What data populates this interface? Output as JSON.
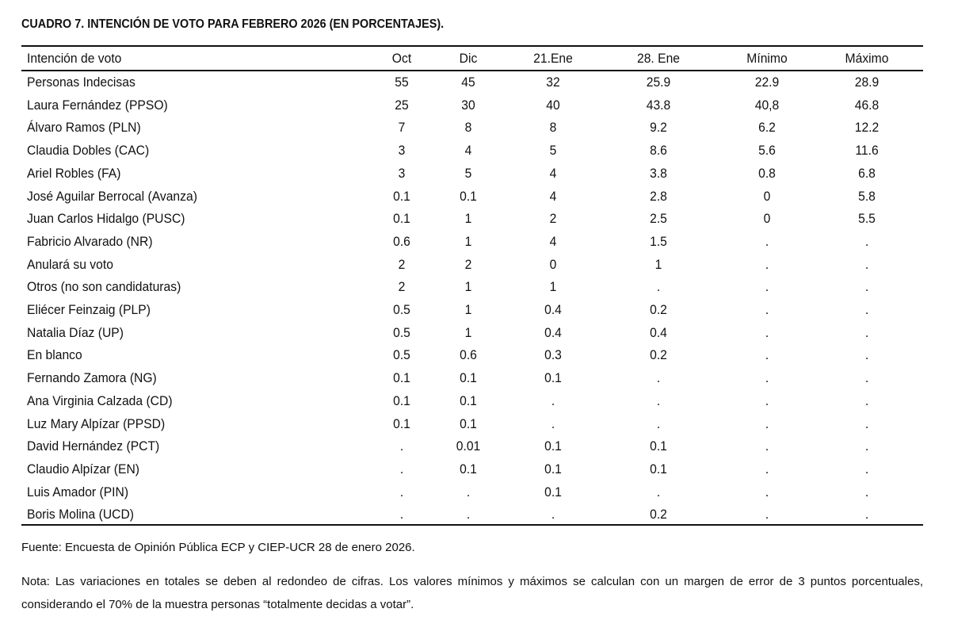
{
  "title": "CUADRO 7. INTENCIÓN DE VOTO PARA FEBRERO 2026 (EN PORCENTAJES).",
  "table": {
    "header": [
      "Intención de voto",
      "Oct",
      "Dic",
      "21.Ene",
      "28. Ene",
      "Mínimo",
      "Máximo"
    ],
    "rows": [
      [
        "Personas Indecisas",
        "55",
        "45",
        "32",
        "25.9",
        "22.9",
        "28.9"
      ],
      [
        "Laura Fernández (PPSO)",
        "25",
        "30",
        "40",
        "43.8",
        "40,8",
        "46.8"
      ],
      [
        "Álvaro Ramos (PLN)",
        "7",
        "8",
        "8",
        "9.2",
        "6.2",
        "12.2"
      ],
      [
        "Claudia Dobles (CAC)",
        "3",
        "4",
        "5",
        "8.6",
        "5.6",
        "11.6"
      ],
      [
        "Ariel Robles (FA)",
        "3",
        "5",
        "4",
        "3.8",
        "0.8",
        "6.8"
      ],
      [
        "José Aguilar Berrocal (Avanza)",
        "0.1",
        "0.1",
        "4",
        "2.8",
        "0",
        "5.8"
      ],
      [
        "Juan Carlos Hidalgo (PUSC)",
        "0.1",
        "1",
        "2",
        "2.5",
        "0",
        "5.5"
      ],
      [
        "Fabricio Alvarado (NR)",
        "0.6",
        "1",
        "4",
        "1.5",
        ".",
        "."
      ],
      [
        "Anulará su voto",
        "2",
        "2",
        "0",
        "1",
        ".",
        "."
      ],
      [
        "Otros (no son candidaturas)",
        "2",
        "1",
        "1",
        ".",
        ".",
        "."
      ],
      [
        "Eliécer Feinzaig (PLP)",
        "0.5",
        "1",
        "0.4",
        "0.2",
        ".",
        "."
      ],
      [
        "Natalia Díaz (UP)",
        "0.5",
        "1",
        "0.4",
        "0.4",
        ".",
        "."
      ],
      [
        "En blanco",
        "0.5",
        "0.6",
        "0.3",
        "0.2",
        ".",
        "."
      ],
      [
        "Fernando Zamora (NG)",
        "0.1",
        "0.1",
        "0.1",
        ".",
        ".",
        "."
      ],
      [
        "Ana Virginia Calzada (CD)",
        "0.1",
        "0.1",
        ".",
        ".",
        ".",
        "."
      ],
      [
        "Luz Mary Alpízar (PPSD)",
        "0.1",
        "0.1",
        ".",
        ".",
        ".",
        "."
      ],
      [
        "David Hernández (PCT)",
        ".",
        "0.01",
        "0.1",
        "0.1",
        ".",
        "."
      ],
      [
        "Claudio Alpízar (EN)",
        ".",
        "0.1",
        "0.1",
        "0.1",
        ".",
        "."
      ],
      [
        "Luis Amador (PIN)",
        ".",
        ".",
        "0.1",
        ".",
        ".",
        "."
      ],
      [
        "Boris Molina (UCD)",
        ".",
        ".",
        ".",
        "0.2",
        ".",
        "."
      ]
    ]
  },
  "source": "Fuente: Encuesta de Opinión Pública ECP y CIEP-UCR 28 de enero 2026.",
  "note": "Nota: Las variaciones en totales se deben al redondeo de cifras. Los valores mínimos y máximos se calculan con un margen de error de 3 puntos porcentuales, considerando el 70% de la muestra personas “totalmente decidas a votar”."
}
